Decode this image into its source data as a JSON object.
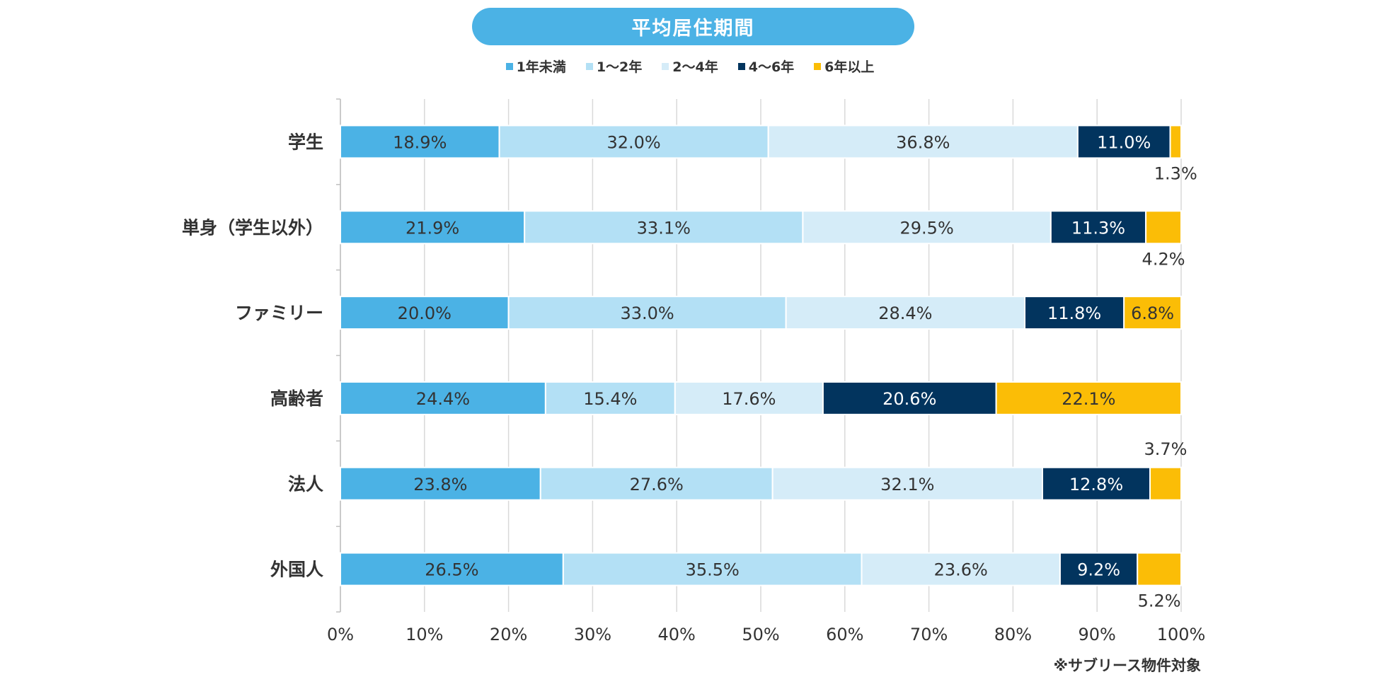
{
  "title": "平均居住期間",
  "note": "※サブリース物件対象",
  "chart_data": {
    "type": "bar",
    "orientation": "horizontal",
    "stacked": true,
    "categories": [
      "学生",
      "単身（学生以外）",
      "ファミリー",
      "高齢者",
      "法人",
      "外国人"
    ],
    "series": [
      {
        "name": "1年未満",
        "color": "#4bb2e5",
        "values": [
          18.9,
          21.9,
          20.0,
          24.4,
          23.8,
          26.5
        ]
      },
      {
        "name": "1〜2年",
        "color": "#b3e0f5",
        "values": [
          32.0,
          33.1,
          33.0,
          15.4,
          27.6,
          35.5
        ]
      },
      {
        "name": "2〜4年",
        "color": "#d5ecf8",
        "values": [
          36.8,
          29.5,
          28.4,
          17.6,
          32.1,
          23.6
        ]
      },
      {
        "name": "4〜6年",
        "color": "#02345e",
        "values": [
          11.0,
          11.3,
          11.8,
          20.6,
          12.8,
          9.2
        ]
      },
      {
        "name": "6年以上",
        "color": "#fbbd06",
        "values": [
          1.3,
          4.2,
          6.8,
          22.1,
          3.7,
          5.2
        ]
      }
    ],
    "value_labels": [
      [
        "18.9%",
        "32.0%",
        "36.8%",
        "11.0%",
        "1.3%"
      ],
      [
        "21.9%",
        "33.1%",
        "29.5%",
        "11.3%",
        "4.2%"
      ],
      [
        "20.0%",
        "33.0%",
        "28.4%",
        "11.8%",
        "6.8%"
      ],
      [
        "24.4%",
        "15.4%",
        "17.6%",
        "20.6%",
        "22.1%"
      ],
      [
        "23.8%",
        "27.6%",
        "32.1%",
        "12.8%",
        "3.7%"
      ],
      [
        "26.5%",
        "35.5%",
        "23.6%",
        "9.2%",
        "5.2%"
      ]
    ],
    "x_ticks": [
      "0%",
      "10%",
      "20%",
      "30%",
      "40%",
      "50%",
      "60%",
      "70%",
      "80%",
      "90%",
      "100%"
    ],
    "xlim": [
      0,
      100
    ],
    "grid": true,
    "legend_position": "top"
  }
}
